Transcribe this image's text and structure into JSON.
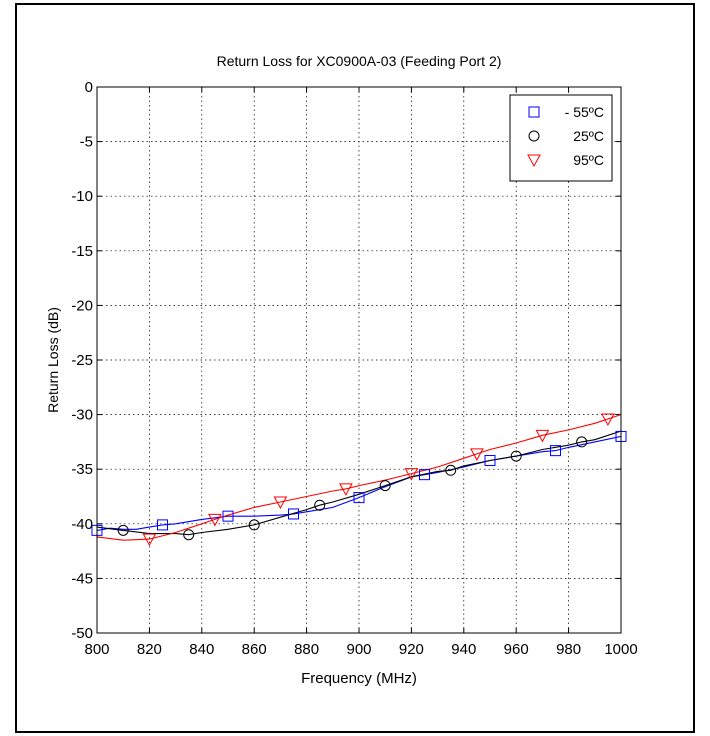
{
  "chart_data": {
    "type": "line",
    "title": "Return Loss for XC0900A-03 (Feeding Port 2)",
    "xlabel": "Frequency (MHz)",
    "ylabel": "Return Loss (dB)",
    "xlim": [
      800,
      1000
    ],
    "ylim": [
      -50,
      0
    ],
    "xticks": [
      800,
      820,
      840,
      860,
      880,
      900,
      920,
      940,
      960,
      980,
      1000
    ],
    "yticks": [
      0,
      -5,
      -10,
      -15,
      -20,
      -25,
      -30,
      -35,
      -40,
      -45,
      -50
    ],
    "grid": "dotted",
    "legend_position": "top-right",
    "series": [
      {
        "name": "- 55ºC",
        "color": "#0000ff",
        "marker": "square",
        "x": [
          800,
          805,
          810,
          815,
          820,
          825,
          830,
          840,
          850,
          860,
          870,
          875,
          880,
          890,
          900,
          910,
          920,
          925,
          930,
          940,
          950,
          960,
          970,
          975,
          980,
          990,
          1000
        ],
        "y": [
          -40.6,
          -40.4,
          -40.5,
          -40.5,
          -40.3,
          -40.1,
          -40.0,
          -39.6,
          -39.3,
          -39.3,
          -39.2,
          -39.1,
          -38.9,
          -38.5,
          -37.6,
          -36.6,
          -35.7,
          -35.5,
          -35.3,
          -34.8,
          -34.2,
          -33.8,
          -33.4,
          -33.3,
          -33.0,
          -32.5,
          -32.0
        ],
        "marker_x": [
          800,
          825,
          850,
          875,
          900,
          925,
          950,
          975,
          1000
        ],
        "marker_y": [
          -40.6,
          -40.1,
          -39.3,
          -39.1,
          -37.6,
          -35.5,
          -34.2,
          -33.3,
          -32.0
        ]
      },
      {
        "name": "25ºC",
        "color": "#000000",
        "marker": "circle",
        "x": [
          800,
          810,
          820,
          830,
          835,
          840,
          850,
          860,
          870,
          880,
          885,
          890,
          900,
          910,
          920,
          930,
          935,
          940,
          950,
          960,
          970,
          980,
          985,
          990,
          1000
        ],
        "y": [
          -40.3,
          -40.6,
          -40.9,
          -40.9,
          -41.0,
          -40.8,
          -40.5,
          -40.1,
          -39.4,
          -38.7,
          -38.3,
          -38.0,
          -37.3,
          -36.5,
          -35.7,
          -35.2,
          -35.1,
          -34.7,
          -34.2,
          -33.8,
          -33.2,
          -32.8,
          -32.5,
          -32.3,
          -31.5
        ],
        "marker_x": [
          810,
          835,
          860,
          885,
          910,
          935,
          960,
          985
        ],
        "marker_y": [
          -40.6,
          -41.0,
          -40.1,
          -38.3,
          -36.5,
          -35.1,
          -33.8,
          -32.5
        ]
      },
      {
        "name": "95ºC",
        "color": "#ff0000",
        "marker": "triangle-down",
        "x": [
          800,
          810,
          820,
          830,
          840,
          845,
          850,
          860,
          870,
          880,
          890,
          895,
          900,
          910,
          920,
          930,
          940,
          945,
          950,
          960,
          970,
          980,
          990,
          995,
          1000
        ],
        "y": [
          -41.2,
          -41.5,
          -41.4,
          -40.8,
          -40.0,
          -39.6,
          -39.2,
          -38.5,
          -38.0,
          -37.5,
          -37.0,
          -36.8,
          -36.5,
          -36.0,
          -35.4,
          -34.8,
          -34.0,
          -33.6,
          -33.2,
          -32.6,
          -31.9,
          -31.4,
          -30.8,
          -30.4,
          -30.0
        ],
        "marker_x": [
          820,
          845,
          870,
          895,
          920,
          945,
          970,
          995
        ],
        "marker_y": [
          -41.4,
          -39.6,
          -38.0,
          -36.8,
          -35.4,
          -33.6,
          -31.9,
          -30.4
        ]
      }
    ]
  }
}
